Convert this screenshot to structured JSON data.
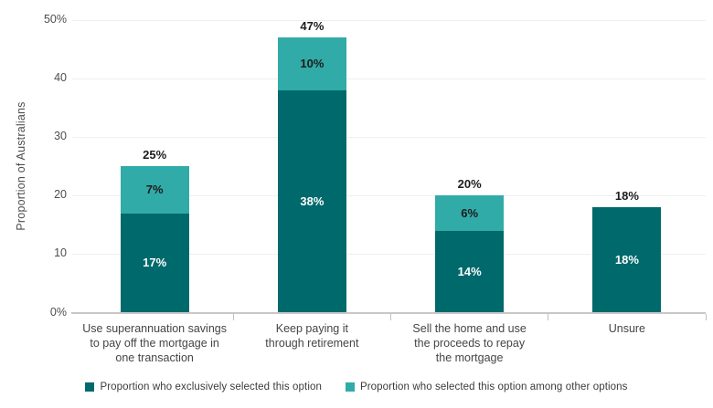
{
  "chart_data": {
    "type": "bar",
    "stacked": true,
    "title": "",
    "xlabel": "",
    "ylabel": "Proportion of Australians",
    "ylim": [
      0,
      50
    ],
    "grid": true,
    "legend_position": "bottom",
    "yticks": [
      {
        "value": 0,
        "label": "0%"
      },
      {
        "value": 10,
        "label": "10"
      },
      {
        "value": 20,
        "label": "20"
      },
      {
        "value": 30,
        "label": "30"
      },
      {
        "value": 40,
        "label": "40"
      },
      {
        "value": 50,
        "label": "50%"
      }
    ],
    "categories": [
      "Use superannuation savings to pay off the mortgage in one transaction",
      "Keep paying it through retirement",
      "Sell the home and use the proceeds to repay the mortgage",
      "Unsure"
    ],
    "category_lines": [
      [
        "Use superannuation savings",
        "to pay off the mortgage in",
        "one transaction"
      ],
      [
        "Keep paying it",
        "through retirement"
      ],
      [
        "Sell the home and use",
        "the proceeds to repay",
        "the mortgage"
      ],
      [
        "Unsure"
      ]
    ],
    "series": [
      {
        "name": "Proportion who exclusively selected this option",
        "color": "#00696B",
        "values": [
          17,
          38,
          14,
          18
        ],
        "labels": [
          "17%",
          "38%",
          "14%",
          "18%"
        ]
      },
      {
        "name": "Proportion who selected this option among other options",
        "color": "#31ABA8",
        "values": [
          7,
          10,
          6,
          0
        ],
        "labels": [
          "7%",
          "10%",
          "6%",
          ""
        ]
      }
    ],
    "totals": [
      25,
      47,
      20,
      18
    ],
    "total_labels": [
      "25%",
      "47%",
      "20%",
      "18%"
    ]
  },
  "colors": {
    "exclusive_dark_teal": "#00696B",
    "among_others_light_teal": "#31ABA8",
    "gridline": "#efefef",
    "axis": "#c7c7c7",
    "axis_text": "#4d4d4d",
    "label_text": "#1c1c1c"
  }
}
